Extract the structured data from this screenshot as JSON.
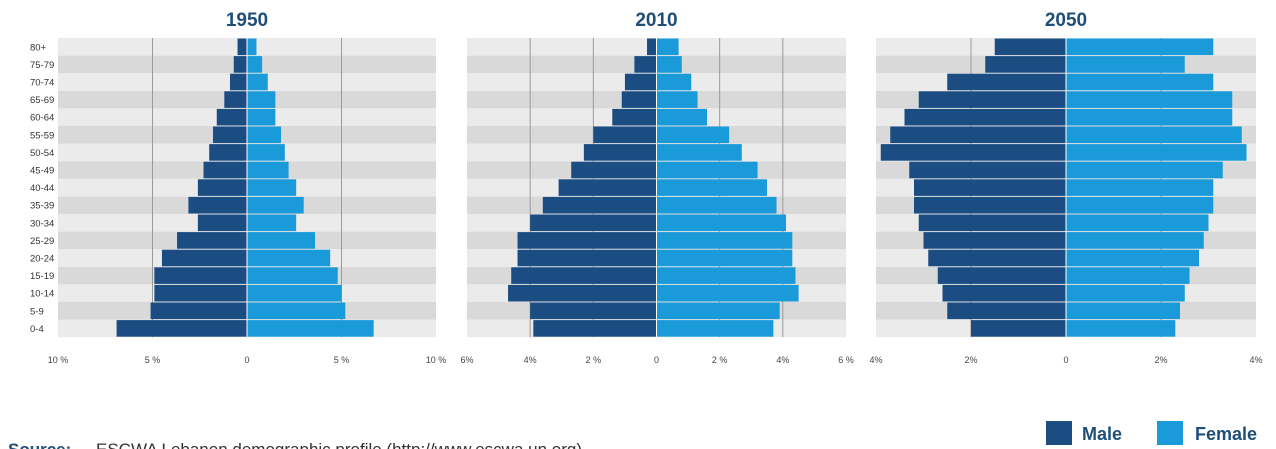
{
  "colors": {
    "male": "#1b4c82",
    "female": "#1a9ad8",
    "band_dark": "#d9d9d9",
    "band_light": "#ebebeb",
    "grid": "#9a9a9a",
    "title": "#1f4e79"
  },
  "age_groups": [
    "0-4",
    "5-9",
    "10-14",
    "15-19",
    "20-24",
    "25-29",
    "30-34",
    "35-39",
    "40-44",
    "45-49",
    "50-54",
    "55-59",
    "60-64",
    "65-69",
    "70-74",
    "75-79",
    "80+"
  ],
  "legend": {
    "male": "Male",
    "female": "Female"
  },
  "source": {
    "label": "Source:",
    "text": "ESCWA Lebanon demographic profile (http://www.escwa.un.org)"
  },
  "chart_data": [
    {
      "type": "bar",
      "title": "1950",
      "xlim": [
        -10,
        10
      ],
      "ticks": [
        -10,
        -5,
        0,
        5,
        10
      ],
      "tick_labels": [
        "10 %",
        "5 %",
        "0",
        "5 %",
        "10 %"
      ],
      "series": [
        {
          "name": "Male",
          "values": [
            6.9,
            5.1,
            4.9,
            4.9,
            4.5,
            3.7,
            2.6,
            3.1,
            2.6,
            2.3,
            2.0,
            1.8,
            1.6,
            1.2,
            0.9,
            0.7,
            0.5
          ]
        },
        {
          "name": "Female",
          "values": [
            6.7,
            5.2,
            5.0,
            4.8,
            4.4,
            3.6,
            2.6,
            3.0,
            2.6,
            2.2,
            2.0,
            1.8,
            1.5,
            1.5,
            1.1,
            0.8,
            0.5
          ]
        }
      ]
    },
    {
      "type": "bar",
      "title": "2010",
      "xlim": [
        -6,
        6
      ],
      "ticks": [
        -6,
        -4,
        -2,
        0,
        2,
        4,
        6
      ],
      "tick_labels": [
        "6%",
        "4%",
        "2 %",
        "0",
        "2 %",
        "4%",
        "6 %"
      ],
      "series": [
        {
          "name": "Male",
          "values": [
            3.9,
            4.0,
            4.7,
            4.6,
            4.4,
            4.4,
            4.0,
            3.6,
            3.1,
            2.7,
            2.3,
            2.0,
            1.4,
            1.1,
            1.0,
            0.7,
            0.3
          ]
        },
        {
          "name": "Female",
          "values": [
            3.7,
            3.9,
            4.5,
            4.4,
            4.3,
            4.3,
            4.1,
            3.8,
            3.5,
            3.2,
            2.7,
            2.3,
            1.6,
            1.3,
            1.1,
            0.8,
            0.7
          ]
        }
      ]
    },
    {
      "type": "bar",
      "title": "2050",
      "xlim": [
        -4,
        4
      ],
      "ticks": [
        -4,
        -2,
        0,
        2,
        4
      ],
      "tick_labels": [
        "4%",
        "2%",
        "0",
        "2%",
        "4%"
      ],
      "series": [
        {
          "name": "Male",
          "values": [
            2.0,
            2.5,
            2.6,
            2.7,
            2.9,
            3.0,
            3.1,
            3.2,
            3.2,
            3.3,
            3.9,
            3.7,
            3.4,
            3.1,
            2.5,
            1.7,
            1.5
          ]
        },
        {
          "name": "Female",
          "values": [
            2.3,
            2.4,
            2.5,
            2.6,
            2.8,
            2.9,
            3.0,
            3.1,
            3.1,
            3.3,
            3.8,
            3.7,
            3.5,
            3.5,
            3.1,
            2.5,
            3.1
          ]
        }
      ]
    }
  ]
}
